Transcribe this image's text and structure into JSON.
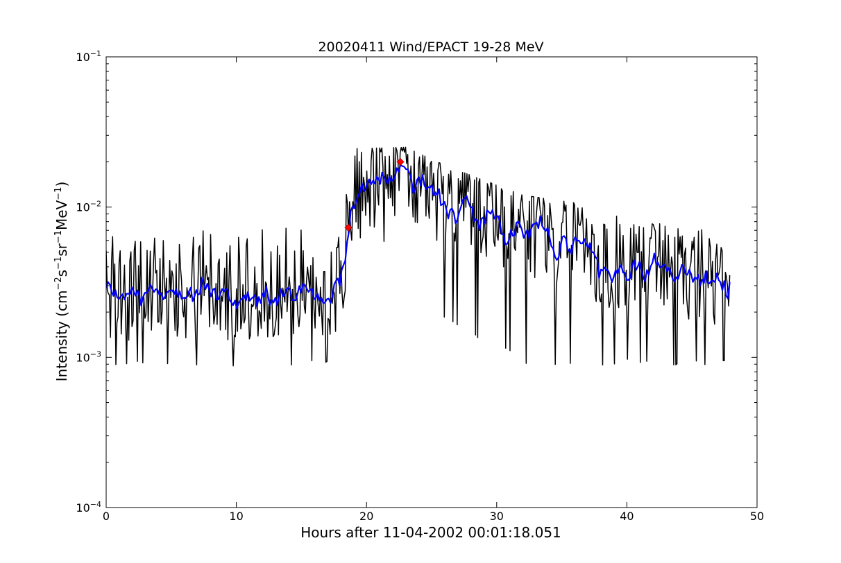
{
  "chart_data": {
    "type": "line",
    "title": "20020411 Wind/EPACT 19-28 MeV",
    "xlabel": "Hours after 11-04-2002 00:01:18.051",
    "ylabel": {
      "base": "Intensity (cm",
      "sup1": "−2",
      "mid1": "s",
      "sup2": "−1",
      "mid2": "sr",
      "sup3": "−1",
      "mid3": "MeV",
      "sup4": "−1",
      "end": ")"
    },
    "xlim": [
      0,
      50
    ],
    "ylim": [
      0.0001,
      0.1
    ],
    "yscale": "log",
    "grid": false,
    "legend": "none",
    "x_ticks": [
      {
        "value": 0,
        "label": "0"
      },
      {
        "value": 10,
        "label": "10"
      },
      {
        "value": 20,
        "label": "20"
      },
      {
        "value": 30,
        "label": "30"
      },
      {
        "value": 40,
        "label": "40"
      },
      {
        "value": 50,
        "label": "50"
      }
    ],
    "y_ticks": [
      {
        "value": 0.0001,
        "base": "10",
        "exp": "−4"
      },
      {
        "value": 0.001,
        "base": "10",
        "exp": "−3"
      },
      {
        "value": 0.01,
        "base": "10",
        "exp": "−2"
      },
      {
        "value": 0.1,
        "base": "10",
        "exp": "−1"
      }
    ],
    "series": [
      {
        "color": "#000000",
        "style": "raw intensity, noisy",
        "x_range": [
          0,
          47.9
        ],
        "n_points": 580,
        "base_level_profile": [
          [
            0,
            0.0027
          ],
          [
            18.0,
            0.0027
          ],
          [
            18.5,
            0.0055
          ],
          [
            19.3,
            0.013
          ],
          [
            20.0,
            0.015
          ],
          [
            22.5,
            0.016
          ],
          [
            23.5,
            0.0155
          ],
          [
            26.0,
            0.0115
          ],
          [
            28.0,
            0.0095
          ],
          [
            32.0,
            0.0075
          ],
          [
            36.0,
            0.0055
          ],
          [
            40.0,
            0.004
          ],
          [
            47.9,
            0.0032
          ]
        ],
        "spike_max": [
          [
            0,
            0.0065
          ],
          [
            18.0,
            0.008
          ],
          [
            19.0,
            0.0245
          ],
          [
            23.0,
            0.025
          ],
          [
            26.0,
            0.019
          ],
          [
            32.0,
            0.012
          ],
          [
            40.0,
            0.0095
          ],
          [
            47.9,
            0.0065
          ]
        ],
        "dip_min": [
          [
            0,
            0.00087
          ],
          [
            18.0,
            0.00087
          ],
          [
            18.5,
            0.003
          ],
          [
            20.0,
            0.008
          ],
          [
            26.0,
            0.0018
          ],
          [
            32.0,
            0.0009
          ],
          [
            47.9,
            0.00087
          ]
        ]
      },
      {
        "color": "#0000ff",
        "style": "smoothed intensity",
        "x_range": [
          0,
          47.9
        ],
        "n_points": 340
      }
    ],
    "markers": [
      {
        "color": "#ff0000",
        "shape": "diamond",
        "x": 18.6,
        "y": 0.0073
      },
      {
        "color": "#ff0000",
        "shape": "diamond",
        "x": 22.6,
        "y": 0.02
      }
    ]
  }
}
